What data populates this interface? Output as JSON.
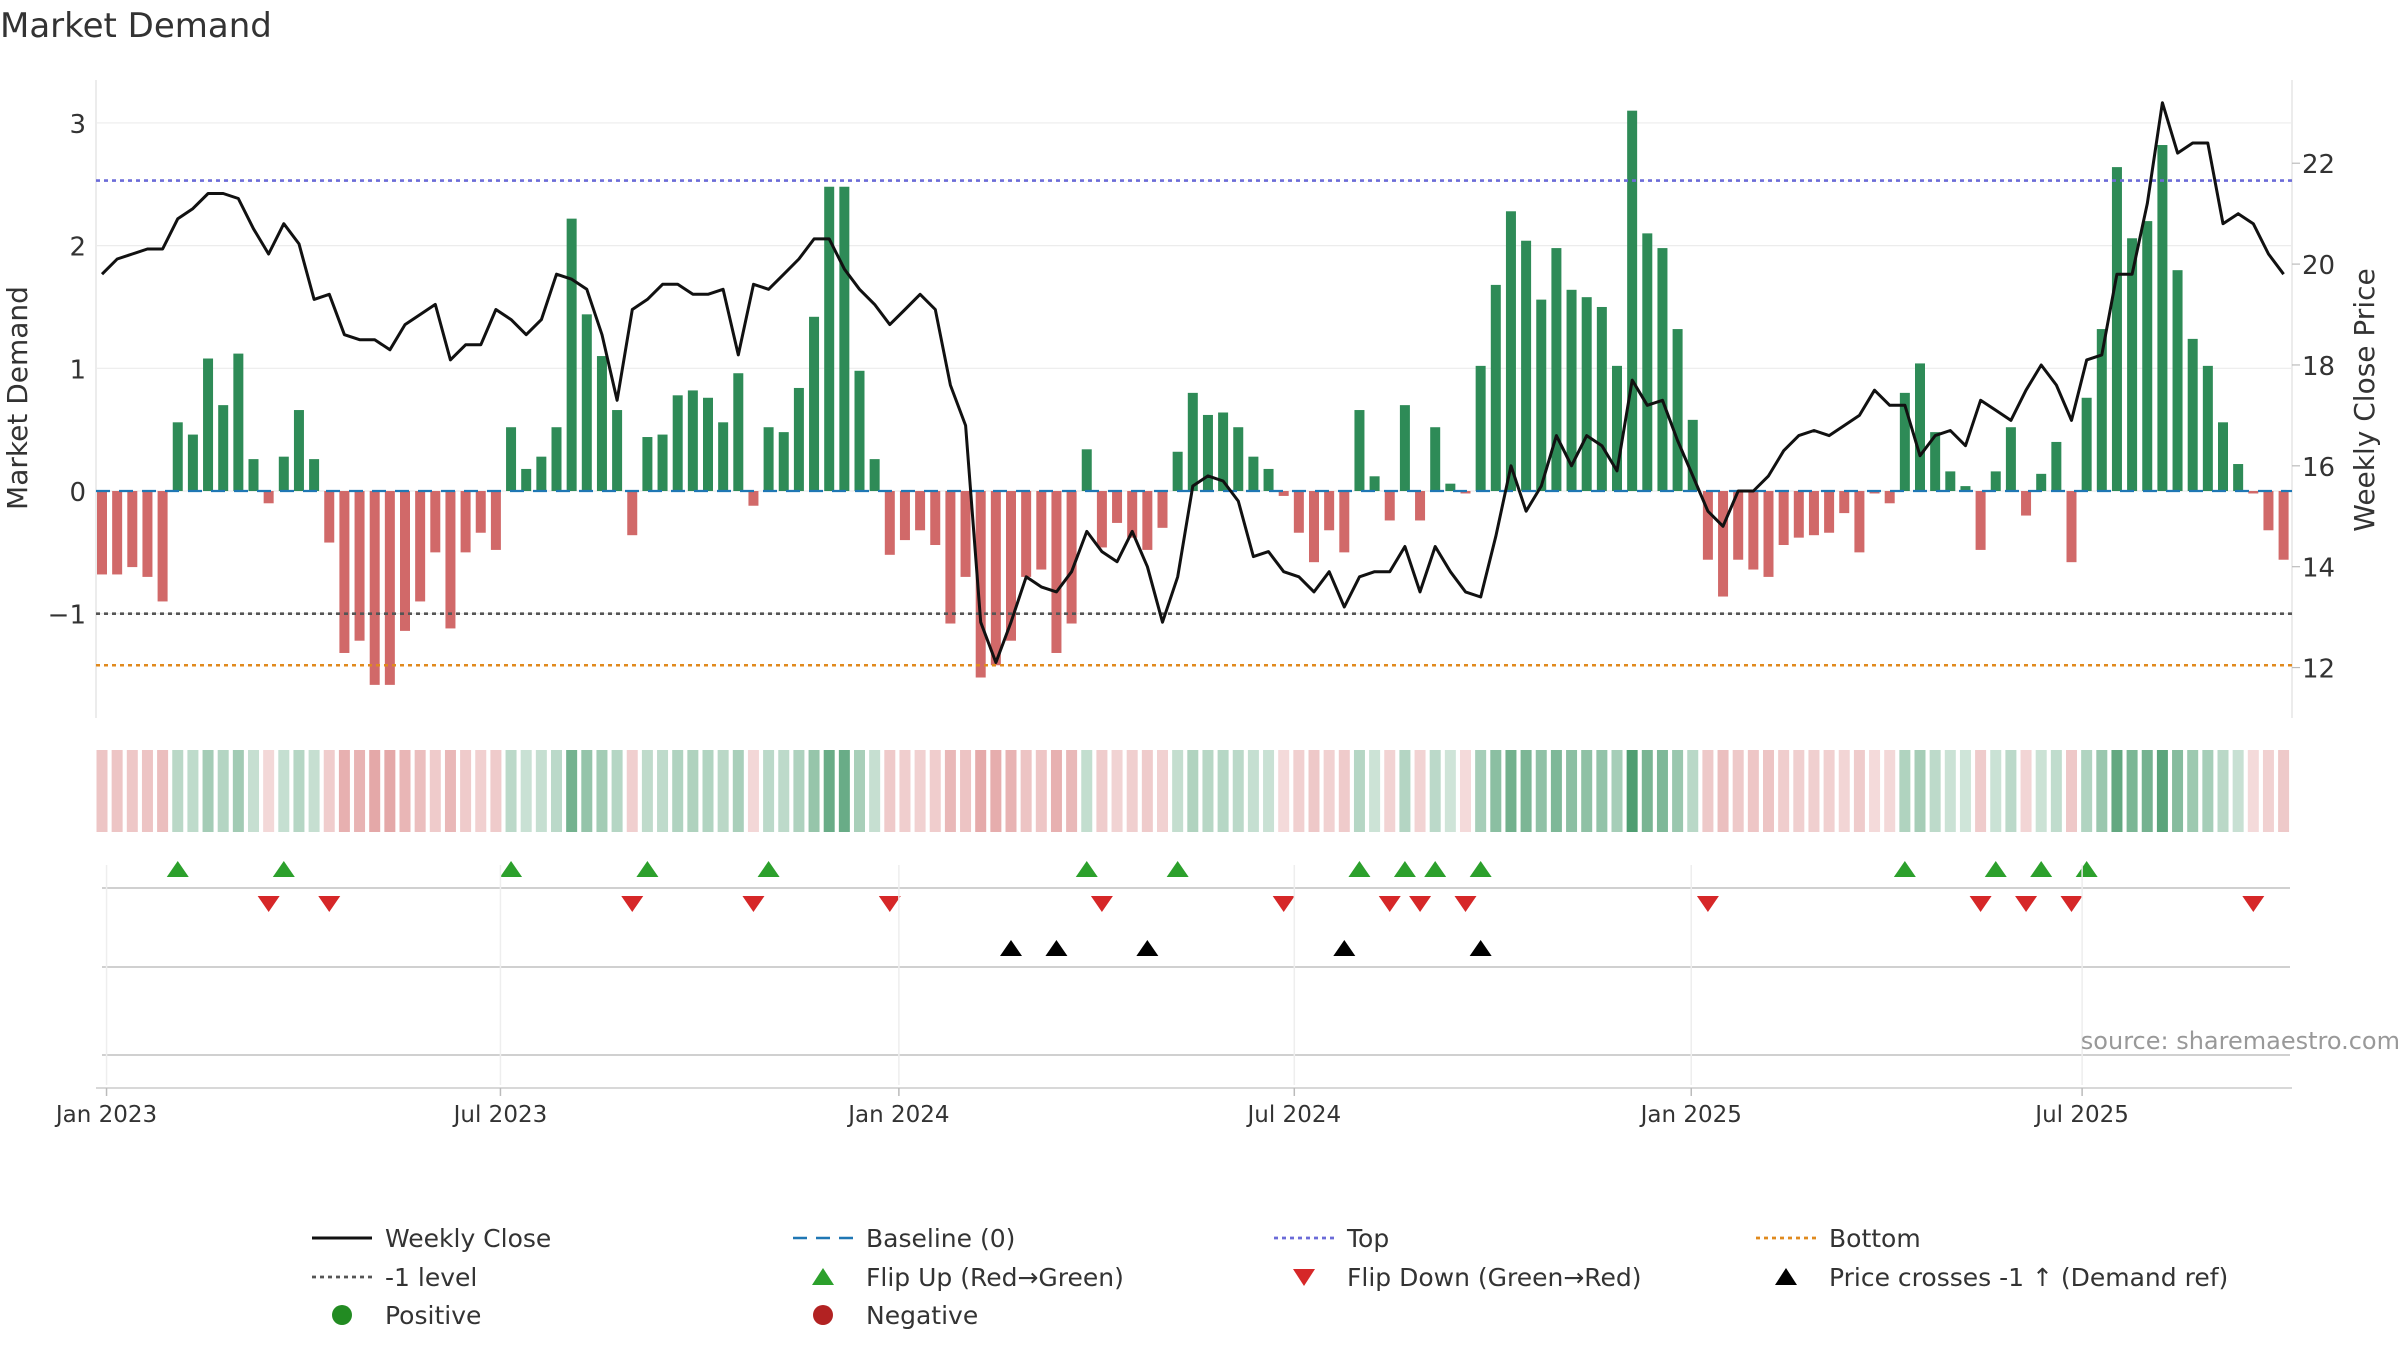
{
  "chart_data": {
    "type": "bar",
    "title": "Market Demand",
    "ylabel": "Market Demand",
    "y2label": "Weekly Close Price",
    "ylim": [
      -1.85,
      3.35
    ],
    "y2lim": [
      11.0,
      23.65
    ],
    "yticks": [
      -1,
      0,
      1,
      2,
      3
    ],
    "ytick_labels": [
      "−1",
      "0",
      "1",
      "2",
      "3"
    ],
    "y2ticks": [
      12,
      14,
      16,
      18,
      20,
      22
    ],
    "y2tick_labels": [
      "12",
      "14",
      "16",
      "18",
      "20",
      "22"
    ],
    "x_tick_labels": [
      "Jan 2023",
      "Jul 2023",
      "Jan 2024",
      "Jul 2024",
      "Jan 2025",
      "Jul 2025"
    ],
    "x_tick_weeks": [
      0.3,
      26.3,
      52.6,
      78.7,
      104.9,
      130.7
    ],
    "n_weeks": 145,
    "demand": [
      -0.68,
      -0.68,
      -0.62,
      -0.7,
      -0.9,
      0.56,
      0.46,
      1.08,
      0.7,
      1.12,
      0.26,
      -0.1,
      0.28,
      0.66,
      0.26,
      -0.42,
      -1.32,
      -1.22,
      -1.58,
      -1.58,
      -1.14,
      -0.9,
      -0.5,
      -1.12,
      -0.5,
      -0.34,
      -0.48,
      0.52,
      0.18,
      0.28,
      0.52,
      2.22,
      1.44,
      1.1,
      0.66,
      -0.36,
      0.44,
      0.46,
      0.78,
      0.82,
      0.76,
      0.56,
      0.96,
      -0.12,
      0.52,
      0.48,
      0.84,
      1.42,
      2.48,
      2.48,
      0.98,
      0.26,
      -0.52,
      -0.4,
      -0.32,
      -0.44,
      -1.08,
      -0.7,
      -1.52,
      -1.42,
      -1.22,
      -0.7,
      -0.64,
      -1.32,
      -1.08,
      0.34,
      -0.46,
      -0.26,
      -0.38,
      -0.48,
      -0.3,
      0.32,
      0.8,
      0.62,
      0.64,
      0.52,
      0.28,
      0.18,
      -0.04,
      -0.34,
      -0.58,
      -0.32,
      -0.5,
      0.66,
      0.12,
      -0.24,
      0.7,
      -0.24,
      0.52,
      0.06,
      -0.02,
      1.02,
      1.68,
      2.28,
      2.04,
      1.56,
      1.98,
      1.64,
      1.58,
      1.5,
      1.02,
      3.1,
      2.1,
      1.98,
      1.32,
      0.58,
      -0.56,
      -0.86,
      -0.56,
      -0.64,
      -0.7,
      -0.44,
      -0.38,
      -0.36,
      -0.34,
      -0.18,
      -0.5,
      -0.02,
      -0.1,
      0.8,
      1.04,
      0.48,
      0.16,
      0.04,
      -0.48,
      0.16,
      0.52,
      -0.2,
      0.14,
      0.4,
      -0.58,
      0.76,
      1.32,
      2.64,
      2.06,
      2.2,
      2.82,
      1.8,
      1.24,
      1.02,
      0.56,
      0.22,
      -0.02,
      -0.32,
      -0.56
    ],
    "close": [
      19.8,
      20.1,
      20.2,
      20.3,
      20.3,
      20.9,
      21.1,
      21.4,
      21.4,
      21.3,
      20.7,
      20.2,
      20.8,
      20.4,
      19.3,
      19.4,
      18.6,
      18.5,
      18.5,
      18.3,
      18.8,
      19.0,
      19.2,
      18.1,
      18.4,
      18.4,
      19.1,
      18.9,
      18.6,
      18.9,
      19.8,
      19.7,
      19.5,
      18.6,
      17.3,
      19.1,
      19.3,
      19.6,
      19.6,
      19.4,
      19.4,
      19.5,
      18.2,
      19.6,
      19.5,
      19.8,
      20.1,
      20.5,
      20.5,
      19.9,
      19.5,
      19.2,
      18.8,
      19.1,
      19.4,
      19.1,
      17.6,
      16.8,
      12.9,
      12.1,
      12.9,
      13.8,
      13.6,
      13.5,
      13.9,
      14.7,
      14.3,
      14.1,
      14.7,
      14.0,
      12.9,
      13.8,
      15.6,
      15.8,
      15.7,
      15.3,
      14.2,
      14.3,
      13.9,
      13.8,
      13.5,
      13.9,
      13.2,
      13.8,
      13.9,
      13.9,
      14.4,
      13.5,
      14.4,
      13.9,
      13.5,
      13.4,
      14.6,
      16.0,
      15.1,
      15.6,
      16.6,
      16.0,
      16.6,
      16.4,
      15.9,
      17.7,
      17.2,
      17.3,
      16.5,
      15.8,
      15.1,
      14.8,
      15.5,
      15.5,
      15.8,
      16.3,
      16.6,
      16.7,
      16.6,
      16.8,
      17.0,
      17.5,
      17.2,
      17.2,
      16.2,
      16.6,
      16.7,
      16.4,
      17.3,
      17.1,
      16.9,
      17.5,
      18.0,
      17.6,
      16.9,
      18.1,
      18.2,
      19.8,
      19.8,
      21.2,
      23.2,
      22.2,
      22.4,
      22.4,
      20.8,
      21.0,
      20.8,
      20.2,
      19.8
    ],
    "cross_weeks": [
      60,
      63,
      69,
      82,
      91
    ],
    "top_level": 2.53,
    "bottom_level": -1.42,
    "neg_level": -1,
    "baseline": 0,
    "source": "source: sharemaestro.com",
    "colors": {
      "positive": "#2e8b57",
      "negative": "#cd5c5c",
      "close": "#111111",
      "baseline": "#1f77b4",
      "top": "#6b6bd8",
      "bottom": "#e08a1e",
      "neg_level": "#555555",
      "flip_up": "#2ca02c",
      "flip_down": "#d62728",
      "cross": "#000000",
      "pos_dot": "#228b22",
      "neg_dot": "#b22222"
    },
    "legend": [
      {
        "label": "Weekly Close",
        "kind": "line-solid",
        "color": "#111111"
      },
      {
        "label": "Baseline (0)",
        "kind": "line-dash",
        "color": "#1f77b4"
      },
      {
        "label": "Top",
        "kind": "line-dot",
        "color": "#6b6bd8"
      },
      {
        "label": "Bottom",
        "kind": "line-dot",
        "color": "#e08a1e"
      },
      {
        "label": "-1 level",
        "kind": "line-dot",
        "color": "#555555"
      },
      {
        "label": "Flip Up (Red→Green)",
        "kind": "tri-up",
        "color": "#2ca02c"
      },
      {
        "label": "Flip Down (Green→Red)",
        "kind": "tri-down",
        "color": "#d62728"
      },
      {
        "label": "Price crosses -1 ↑ (Demand ref)",
        "kind": "tri-up",
        "color": "#000000"
      },
      {
        "label": "Positive",
        "kind": "dot",
        "color": "#228b22"
      },
      {
        "label": "Negative",
        "kind": "dot",
        "color": "#b22222"
      }
    ]
  }
}
